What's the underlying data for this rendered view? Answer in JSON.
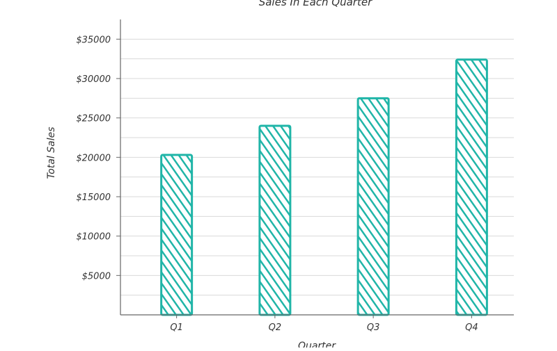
{
  "chart_data": {
    "type": "bar",
    "title": "Sales In Each Quarter",
    "xlabel": "Quarter",
    "ylabel": "Total Sales",
    "categories": [
      "Q1",
      "Q2",
      "Q3",
      "Q4"
    ],
    "values": [
      20300,
      24000,
      27500,
      32400
    ],
    "ylim": [
      0,
      37500
    ],
    "y_ticks": [
      {
        "value": 5000,
        "label": "$5000"
      },
      {
        "value": 10000,
        "label": "$10000"
      },
      {
        "value": 15000,
        "label": "$15000"
      },
      {
        "value": 20000,
        "label": "$20000"
      },
      {
        "value": 25000,
        "label": "$25000"
      },
      {
        "value": 30000,
        "label": "$30000"
      },
      {
        "value": 35000,
        "label": "$35000"
      }
    ],
    "gridlines": [
      2500,
      5000,
      7500,
      10000,
      12500,
      15000,
      17500,
      20000,
      22500,
      25000,
      27500,
      30000,
      32500,
      35000
    ],
    "grid": true,
    "legend": "none",
    "bar_color": "#20b5a8",
    "style": "hand-drawn hatched"
  }
}
